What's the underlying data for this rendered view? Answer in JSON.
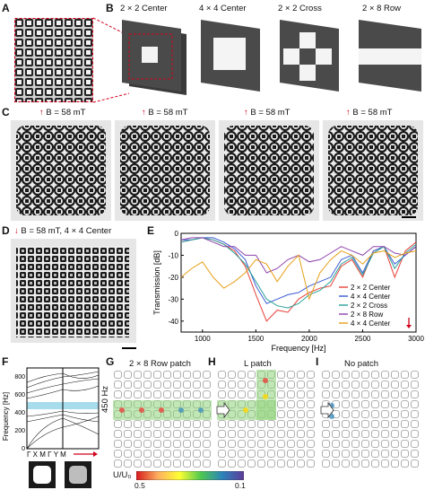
{
  "panels": {
    "a": "A",
    "b": "B",
    "c": "C",
    "d": "D",
    "e": "E",
    "f": "F",
    "g": "G",
    "h": "H",
    "i": "I"
  },
  "panel_b": {
    "titles": [
      "2 × 2 Center",
      "4 × 4 Center",
      "2 × 2 Cross",
      "2 × 8 Row"
    ]
  },
  "panel_c": {
    "field_label": "B = 58 mT"
  },
  "panel_d": {
    "field_label": "B = 58 mT, 4 × 4 Center"
  },
  "panel_f": {
    "ylabel": "Frequency [Hz]",
    "yticks": [
      "0",
      "200",
      "400",
      "600",
      "800"
    ],
    "path_label": "Γ X M Γ Y M"
  },
  "panel_g": {
    "title": "2 × 8 Row patch",
    "freq_label": "450 Hz"
  },
  "panel_h": {
    "title": "L patch"
  },
  "panel_i": {
    "title": "No patch"
  },
  "colorbar": {
    "label": "U/U₀",
    "min_label": "0.5",
    "max_label": "0.1",
    "colors": [
      "#d7191c",
      "#fdae61",
      "#ffff33",
      "#4ec850",
      "#2b83ba",
      "#5e3c99"
    ]
  },
  "chart_data": {
    "type": "line",
    "title": "",
    "xlabel": "Frequency [Hz]",
    "ylabel": "Transmission [dB]",
    "xlim": [
      800,
      3000
    ],
    "ylim": [
      -45,
      0
    ],
    "xticks": [
      "1000",
      "1500",
      "2000",
      "2500",
      "3000"
    ],
    "yticks": [
      "0",
      "-10",
      "-20",
      "-30",
      "-40"
    ],
    "legend_position": "bottom-right",
    "series": [
      {
        "name": "2 × 2 Center",
        "color": "#e8403a",
        "x": [
          800,
          900,
          1000,
          1100,
          1200,
          1300,
          1400,
          1500,
          1600,
          1700,
          1800,
          1900,
          2000,
          2100,
          2200,
          2300,
          2400,
          2500,
          2600,
          2700,
          2800,
          2900,
          3000
        ],
        "y": [
          -4,
          -3,
          -2,
          -3,
          -5,
          -8,
          -15,
          -28,
          -40,
          -35,
          -36,
          -30,
          -27,
          -25,
          -24,
          -15,
          -12,
          -20,
          -8,
          -6,
          -20,
          -8,
          -4
        ]
      },
      {
        "name": "4 × 4 Center",
        "color": "#3b5bd6",
        "x": [
          800,
          900,
          1000,
          1100,
          1200,
          1300,
          1400,
          1500,
          1600,
          1700,
          1800,
          1900,
          2000,
          2100,
          2200,
          2300,
          2400,
          2500,
          2600,
          2700,
          2800,
          2900,
          3000
        ],
        "y": [
          -3,
          -3,
          -2,
          -2,
          -4,
          -7,
          -12,
          -24,
          -32,
          -30,
          -28,
          -27,
          -24,
          -22,
          -20,
          -12,
          -10,
          -18,
          -8,
          -6,
          -14,
          -10,
          -6
        ]
      },
      {
        "name": "2 × 2 Cross",
        "color": "#2aa198",
        "x": [
          800,
          900,
          1000,
          1100,
          1200,
          1300,
          1400,
          1500,
          1600,
          1700,
          1800,
          1900,
          2000,
          2100,
          2200,
          2300,
          2400,
          2500,
          2600,
          2700,
          2800,
          2900,
          3000
        ],
        "y": [
          -4,
          -3,
          -2,
          -3,
          -5,
          -9,
          -14,
          -22,
          -30,
          -33,
          -34,
          -32,
          -28,
          -26,
          -22,
          -14,
          -11,
          -19,
          -9,
          -6,
          -16,
          -9,
          -5
        ]
      },
      {
        "name": "2 × 8 Row",
        "color": "#8e44ad",
        "x": [
          800,
          900,
          1000,
          1100,
          1200,
          1300,
          1400,
          1500,
          1600,
          1700,
          1800,
          1900,
          2000,
          2100,
          2200,
          2300,
          2400,
          2500,
          2600,
          2700,
          2800,
          2900,
          3000
        ],
        "y": [
          -3,
          -2,
          -2,
          -4,
          -6,
          -6,
          -10,
          -10,
          -18,
          -16,
          -12,
          -10,
          -13,
          -12,
          -9,
          -6,
          -8,
          -10,
          -6,
          -6,
          -9,
          -10,
          -6
        ]
      },
      {
        "name": "4 × 4 Center",
        "color": "#e6a019",
        "x": [
          800,
          900,
          1000,
          1100,
          1200,
          1300,
          1400,
          1500,
          1600,
          1700,
          1800,
          1900,
          2000,
          2100,
          2200,
          2300,
          2400,
          2500,
          2600,
          2700,
          2800,
          2900,
          3000
        ],
        "y": [
          -20,
          -16,
          -13,
          -20,
          -25,
          -22,
          -18,
          -12,
          -14,
          -22,
          -15,
          -10,
          -30,
          -18,
          -12,
          -8,
          -10,
          -14,
          -9,
          -8,
          -11,
          -9,
          -8
        ]
      }
    ]
  }
}
